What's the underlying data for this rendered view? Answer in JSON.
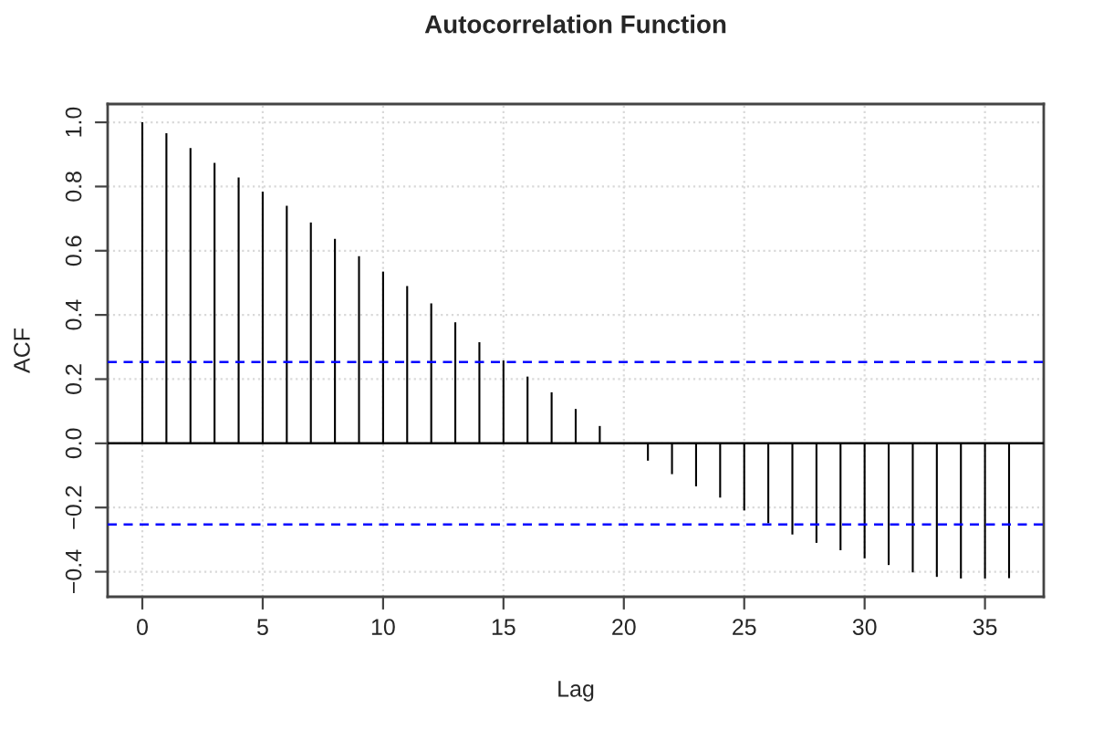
{
  "chart_data": {
    "type": "bar",
    "title": "Autocorrelation Function",
    "xlabel": "Lag",
    "ylabel": "ACF",
    "x": [
      0,
      1,
      2,
      3,
      4,
      5,
      6,
      7,
      8,
      9,
      10,
      11,
      12,
      13,
      14,
      15,
      16,
      17,
      18,
      19,
      20,
      21,
      22,
      23,
      24,
      25,
      26,
      27,
      28,
      29,
      30,
      31,
      32,
      33,
      34,
      35,
      36
    ],
    "values": [
      1.0,
      0.966,
      0.92,
      0.874,
      0.828,
      0.784,
      0.74,
      0.688,
      0.637,
      0.583,
      0.535,
      0.49,
      0.436,
      0.377,
      0.315,
      0.258,
      0.208,
      0.159,
      0.107,
      0.054,
      0.0,
      -0.054,
      -0.096,
      -0.134,
      -0.169,
      -0.209,
      -0.249,
      -0.284,
      -0.31,
      -0.333,
      -0.358,
      -0.379,
      -0.402,
      -0.416,
      -0.421,
      -0.421,
      -0.42
    ],
    "color": "#000000",
    "xlim": [
      -1.44,
      37.44
    ],
    "xticks": [
      0,
      5,
      10,
      15,
      20,
      25,
      30,
      35
    ],
    "ylim": [
      -0.478,
      1.057
    ],
    "yticks": [
      {
        "value": -0.4,
        "label": "−0.4"
      },
      {
        "value": -0.2,
        "label": "−0.2"
      },
      {
        "value": 0,
        "label": "0.0"
      },
      {
        "value": 0.2,
        "label": "0.2"
      },
      {
        "value": 0.4,
        "label": "0.4"
      },
      {
        "value": 0.6,
        "label": "0.6"
      },
      {
        "value": 0.8,
        "label": "0.8"
      },
      {
        "value": 1.0,
        "label": "1.0"
      }
    ],
    "grid": true,
    "ref_lines": [
      {
        "axis": "y",
        "value": 0,
        "color": "#000000",
        "line_style": "solid"
      },
      {
        "axis": "y",
        "value": 0.253,
        "color": "#0000ff",
        "line_style": "dashed"
      },
      {
        "axis": "y",
        "value": -0.253,
        "color": "#0000ff",
        "line_style": "dashed"
      }
    ]
  }
}
